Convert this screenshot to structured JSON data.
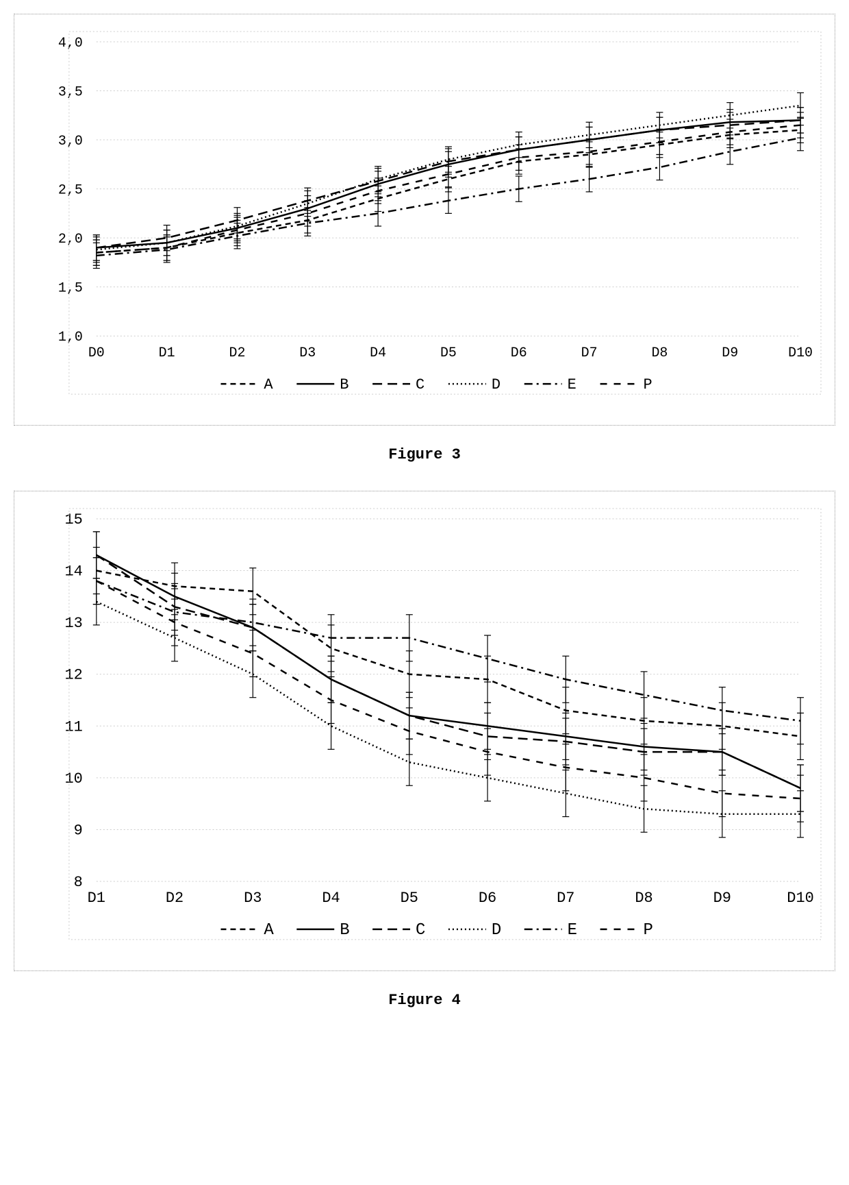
{
  "figure3": {
    "type": "line",
    "title": "Figure 3",
    "title_fontsize": 22,
    "font_family": "Courier New",
    "label_fontsize": 20,
    "background_color": "#ffffff",
    "border_color": "#999999",
    "grid_color": "#cccccc",
    "line_color": "#000000",
    "line_width": 2.5,
    "error_bar_halfheight": 0.13,
    "categories": [
      "D0",
      "D1",
      "D2",
      "D3",
      "D4",
      "D5",
      "D6",
      "D7",
      "D8",
      "D9",
      "D10"
    ],
    "ylim": [
      1.0,
      4.0
    ],
    "ytick_step": 0.5,
    "ytick_labels": [
      "1,0",
      "1,5",
      "2,0",
      "2,5",
      "3,0",
      "3,5",
      "4,0"
    ],
    "decimal_separator": ",",
    "series": [
      {
        "name": "A",
        "dash": "8,6",
        "values": [
          1.85,
          1.9,
          2.05,
          2.18,
          2.4,
          2.6,
          2.78,
          2.85,
          2.95,
          3.05,
          3.1
        ]
      },
      {
        "name": "B",
        "dash": "none",
        "values": [
          1.9,
          1.95,
          2.1,
          2.3,
          2.55,
          2.75,
          2.9,
          3.0,
          3.1,
          3.18,
          3.2
        ]
      },
      {
        "name": "C",
        "dash": "14,8",
        "values": [
          1.9,
          2.0,
          2.18,
          2.38,
          2.58,
          2.78,
          2.9,
          3.0,
          3.1,
          3.15,
          3.2
        ]
      },
      {
        "name": "D",
        "dash": "2,4",
        "values": [
          1.88,
          1.95,
          2.12,
          2.35,
          2.6,
          2.8,
          2.95,
          3.05,
          3.15,
          3.25,
          3.35
        ]
      },
      {
        "name": "E",
        "dash": "12,6,3,6",
        "values": [
          1.82,
          1.88,
          2.02,
          2.15,
          2.25,
          2.38,
          2.5,
          2.6,
          2.72,
          2.88,
          3.02
        ]
      },
      {
        "name": "P",
        "dash": "10,10",
        "values": [
          1.85,
          1.9,
          2.08,
          2.25,
          2.48,
          2.65,
          2.82,
          2.88,
          2.98,
          3.08,
          3.15
        ]
      }
    ],
    "legend": [
      "A",
      "B",
      "C",
      "D",
      "E",
      "P"
    ]
  },
  "figure4": {
    "type": "line",
    "title": "Figure 4",
    "title_fontsize": 22,
    "font_family": "Courier New",
    "label_fontsize": 22,
    "background_color": "#ffffff",
    "border_color": "#999999",
    "grid_color": "#cccccc",
    "line_color": "#000000",
    "line_width": 2.5,
    "error_bar_halfheight": 0.45,
    "categories": [
      "D1",
      "D2",
      "D3",
      "D4",
      "D5",
      "D6",
      "D7",
      "D8",
      "D9",
      "D10"
    ],
    "ylim": [
      8,
      15
    ],
    "ytick_step": 1,
    "ytick_labels": [
      "8",
      "9",
      "10",
      "11",
      "12",
      "13",
      "14",
      "15"
    ],
    "series": [
      {
        "name": "A",
        "dash": "8,6",
        "values": [
          14.0,
          13.7,
          13.6,
          12.5,
          12.0,
          11.9,
          11.3,
          11.1,
          11.0,
          10.8
        ]
      },
      {
        "name": "B",
        "dash": "none",
        "values": [
          14.3,
          13.5,
          12.9,
          11.9,
          11.2,
          11.0,
          10.8,
          10.6,
          10.5,
          9.8
        ]
      },
      {
        "name": "C",
        "dash": "14,8",
        "values": [
          14.3,
          13.3,
          12.9,
          11.9,
          11.2,
          10.8,
          10.7,
          10.5,
          10.5,
          9.8
        ]
      },
      {
        "name": "D",
        "dash": "2,4",
        "values": [
          13.4,
          12.7,
          12.0,
          11.0,
          10.3,
          10.0,
          9.7,
          9.4,
          9.3,
          9.3
        ]
      },
      {
        "name": "E",
        "dash": "12,6,3,6",
        "values": [
          13.8,
          13.2,
          13.0,
          12.7,
          12.7,
          12.3,
          11.9,
          11.6,
          11.3,
          11.1
        ]
      },
      {
        "name": "P",
        "dash": "10,10",
        "values": [
          13.8,
          13.0,
          12.4,
          11.5,
          10.9,
          10.5,
          10.2,
          10.0,
          9.7,
          9.6
        ]
      }
    ],
    "legend": [
      "A",
      "B",
      "C",
      "D",
      "E",
      "P"
    ]
  }
}
